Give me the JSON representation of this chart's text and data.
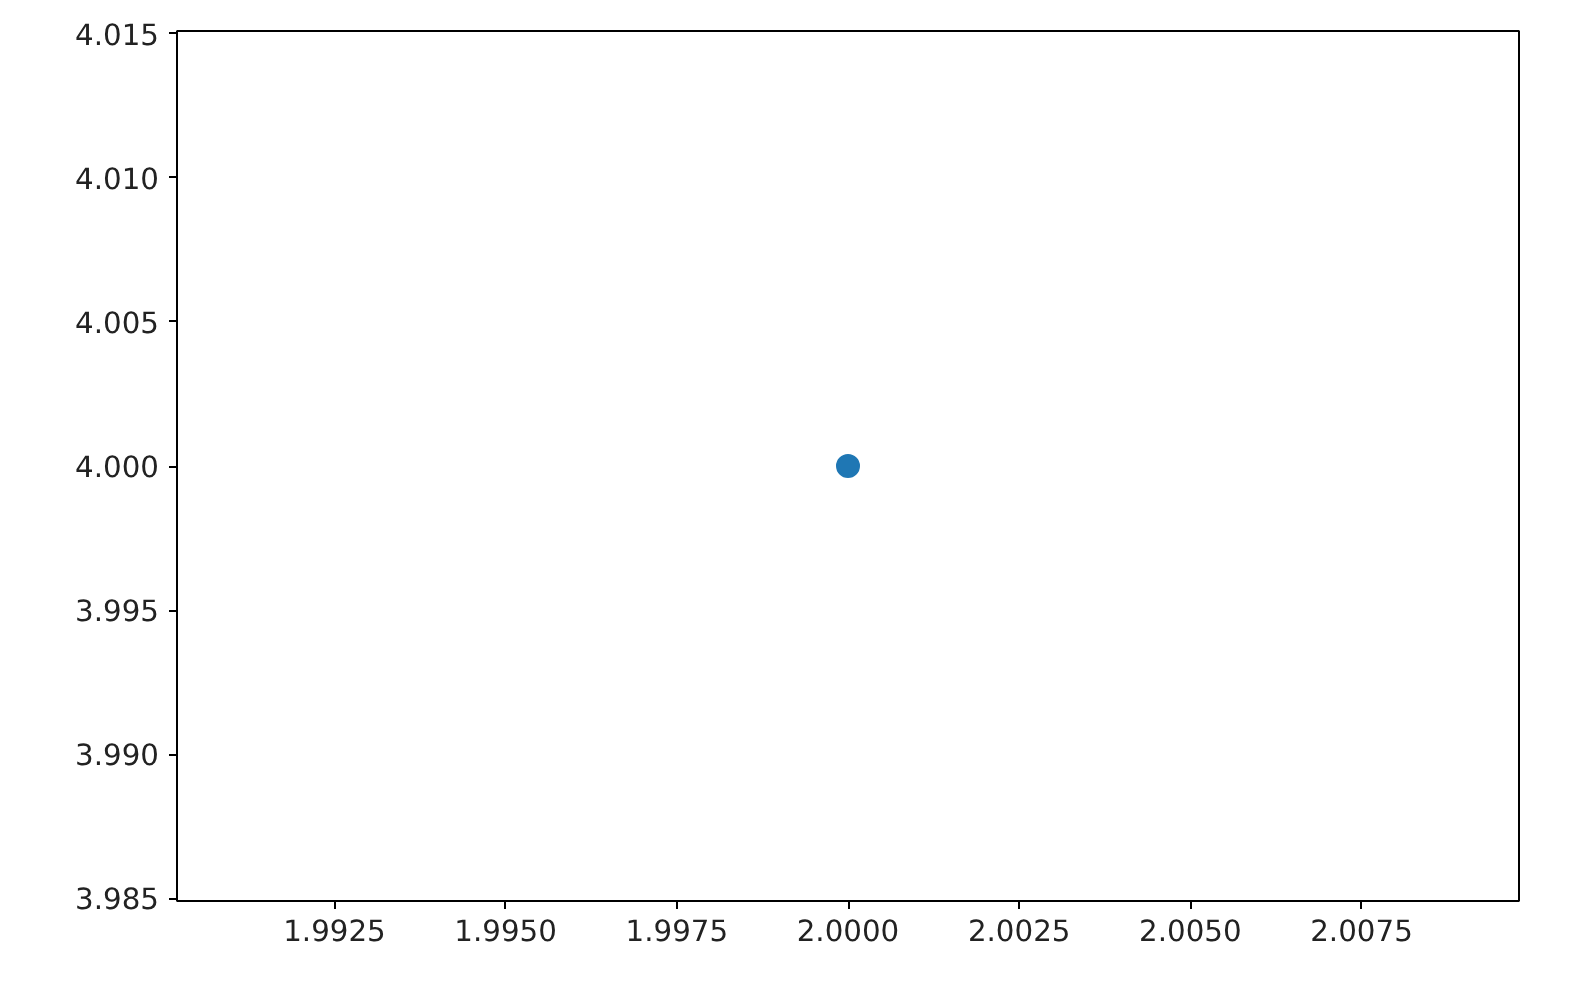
{
  "chart_data": {
    "type": "scatter",
    "x": [
      2.0
    ],
    "values": [
      4.0
    ],
    "color": "#1f77b4",
    "marker": "circle",
    "xlim": [
      1.9902,
      2.0098
    ],
    "xticks": [
      {
        "value": 1.9925,
        "label": "1.9925"
      },
      {
        "value": 1.995,
        "label": "1.9950"
      },
      {
        "value": 1.9975,
        "label": "1.9975"
      },
      {
        "value": 2.0,
        "label": "2.0000"
      },
      {
        "value": 2.0025,
        "label": "2.0025"
      },
      {
        "value": 2.005,
        "label": "2.0050"
      },
      {
        "value": 2.0075,
        "label": "2.0075"
      }
    ],
    "ylim": [
      3.9849,
      4.0151
    ],
    "yticks": [
      {
        "value": 3.985,
        "label": "3.985"
      },
      {
        "value": 3.99,
        "label": "3.990"
      },
      {
        "value": 3.995,
        "label": "3.995"
      },
      {
        "value": 4.0,
        "label": "4.000"
      },
      {
        "value": 4.005,
        "label": "4.005"
      },
      {
        "value": 4.01,
        "label": "4.010"
      },
      {
        "value": 4.015,
        "label": "4.015"
      }
    ],
    "grid": false
  }
}
